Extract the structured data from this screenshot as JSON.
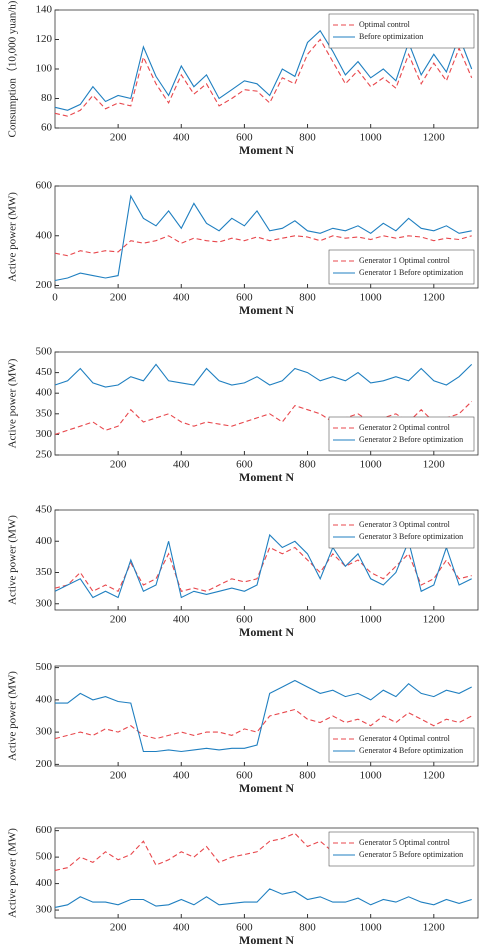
{
  "chart_data": [
    {
      "type": "line",
      "x_label": "Moment N",
      "y_label": "Consumption（10,000 yuan/h)",
      "legend": "top-right",
      "x": [
        0,
        40,
        80,
        120,
        160,
        200,
        240,
        280,
        320,
        360,
        400,
        440,
        480,
        520,
        560,
        600,
        640,
        680,
        720,
        760,
        800,
        840,
        880,
        920,
        960,
        1000,
        1040,
        1080,
        1120,
        1160,
        1200,
        1240,
        1280,
        1320
      ],
      "xlim": [
        0,
        1340
      ],
      "xticks": [
        200,
        400,
        600,
        800,
        1000,
        1200
      ],
      "ylim": [
        60,
        140
      ],
      "yticks": [
        60,
        80,
        100,
        120,
        140
      ],
      "series": [
        {
          "name": "Optimal control",
          "color": "#e8474c",
          "style": "dashed",
          "values": [
            70,
            68,
            72,
            82,
            73,
            77,
            75,
            108,
            90,
            77,
            96,
            83,
            90,
            75,
            80,
            86,
            85,
            77,
            94,
            90,
            110,
            120,
            105,
            90,
            99,
            88,
            94,
            87,
            110,
            90,
            104,
            92,
            114,
            94
          ]
        },
        {
          "name": "Before optimization",
          "color": "#1f7fc0",
          "style": "solid",
          "values": [
            74,
            72,
            76,
            88,
            78,
            82,
            80,
            115,
            95,
            82,
            102,
            88,
            96,
            80,
            86,
            92,
            90,
            82,
            100,
            95,
            118,
            126,
            112,
            96,
            105,
            94,
            100,
            92,
            118,
            96,
            110,
            98,
            122,
            100
          ]
        }
      ]
    },
    {
      "type": "line",
      "x_label": "Moment N",
      "y_label": "Active power (MW)",
      "legend": "bottom-right",
      "x": [
        0,
        40,
        80,
        120,
        160,
        200,
        240,
        280,
        320,
        360,
        400,
        440,
        480,
        520,
        560,
        600,
        640,
        680,
        720,
        760,
        800,
        840,
        880,
        920,
        960,
        1000,
        1040,
        1080,
        1120,
        1160,
        1200,
        1240,
        1280,
        1320
      ],
      "xlim": [
        0,
        1340
      ],
      "xticks": [
        0,
        200,
        400,
        600,
        800,
        1000,
        1200
      ],
      "ylim": [
        190,
        600
      ],
      "yticks": [
        200,
        400,
        600
      ],
      "series": [
        {
          "name": "Generator 1  Optimal control",
          "color": "#e8474c",
          "style": "dashed",
          "values": [
            330,
            320,
            340,
            330,
            340,
            335,
            380,
            370,
            380,
            400,
            370,
            390,
            380,
            375,
            390,
            380,
            395,
            380,
            390,
            400,
            395,
            380,
            400,
            390,
            395,
            385,
            400,
            390,
            400,
            395,
            380,
            390,
            385,
            400
          ]
        },
        {
          "name": "Generator 1  Before optimization",
          "color": "#1f7fc0",
          "style": "solid",
          "values": [
            220,
            230,
            250,
            240,
            230,
            240,
            560,
            470,
            440,
            500,
            430,
            530,
            450,
            420,
            470,
            440,
            500,
            420,
            430,
            460,
            420,
            410,
            430,
            420,
            440,
            410,
            450,
            420,
            470,
            430,
            420,
            440,
            410,
            420
          ]
        }
      ]
    },
    {
      "type": "line",
      "x_label": "Moment N",
      "y_label": "Active power (MW)",
      "legend": "bottom-right",
      "x": [
        0,
        40,
        80,
        120,
        160,
        200,
        240,
        280,
        320,
        360,
        400,
        440,
        480,
        520,
        560,
        600,
        640,
        680,
        720,
        760,
        800,
        840,
        880,
        920,
        960,
        1000,
        1040,
        1080,
        1120,
        1160,
        1200,
        1240,
        1280,
        1320
      ],
      "xlim": [
        0,
        1340
      ],
      "xticks": [
        200,
        400,
        600,
        800,
        1000,
        1200
      ],
      "ylim": [
        250,
        500
      ],
      "yticks": [
        250,
        300,
        350,
        400,
        450,
        500
      ],
      "series": [
        {
          "name": "Generator 2     Optimal control",
          "color": "#e8474c",
          "style": "dashed",
          "values": [
            300,
            310,
            320,
            330,
            310,
            320,
            360,
            330,
            340,
            350,
            330,
            320,
            330,
            325,
            320,
            330,
            340,
            350,
            330,
            370,
            360,
            350,
            330,
            340,
            350,
            330,
            340,
            350,
            330,
            360,
            330,
            340,
            350,
            380
          ]
        },
        {
          "name": "Generator 2   Before optimization",
          "color": "#1f7fc0",
          "style": "solid",
          "values": [
            420,
            430,
            460,
            425,
            415,
            420,
            440,
            430,
            470,
            430,
            425,
            420,
            460,
            430,
            420,
            425,
            440,
            420,
            430,
            460,
            450,
            430,
            440,
            430,
            450,
            425,
            430,
            440,
            430,
            460,
            430,
            420,
            440,
            470
          ]
        }
      ]
    },
    {
      "type": "line",
      "x_label": "Moment N",
      "y_label": "Active  power (MW)",
      "legend": "top-right",
      "x": [
        0,
        40,
        80,
        120,
        160,
        200,
        240,
        280,
        320,
        360,
        400,
        440,
        480,
        520,
        560,
        600,
        640,
        680,
        720,
        760,
        800,
        840,
        880,
        920,
        960,
        1000,
        1040,
        1080,
        1120,
        1160,
        1200,
        1240,
        1280,
        1320
      ],
      "xlim": [
        0,
        1340
      ],
      "xticks": [
        200,
        400,
        600,
        800,
        1000,
        1200
      ],
      "ylim": [
        290,
        450
      ],
      "yticks": [
        300,
        350,
        400,
        450
      ],
      "series": [
        {
          "name": "Generator 3   Optimal control",
          "color": "#e8474c",
          "style": "dashed",
          "values": [
            325,
            330,
            350,
            320,
            330,
            320,
            365,
            330,
            340,
            380,
            320,
            325,
            320,
            330,
            340,
            335,
            340,
            390,
            380,
            390,
            370,
            350,
            380,
            360,
            370,
            350,
            340,
            360,
            380,
            330,
            340,
            370,
            340,
            345
          ]
        },
        {
          "name": "Generator 3  Before optimization",
          "color": "#1f7fc0",
          "style": "solid",
          "values": [
            320,
            330,
            340,
            310,
            320,
            310,
            370,
            320,
            330,
            400,
            310,
            320,
            315,
            320,
            325,
            320,
            330,
            410,
            390,
            400,
            380,
            340,
            390,
            360,
            380,
            340,
            330,
            350,
            400,
            320,
            330,
            390,
            330,
            340
          ]
        }
      ]
    },
    {
      "type": "line",
      "x_label": "Moment N",
      "y_label": "Active power (MW)",
      "legend": "bottom-right",
      "x": [
        0,
        40,
        80,
        120,
        160,
        200,
        240,
        280,
        320,
        360,
        400,
        440,
        480,
        520,
        560,
        600,
        640,
        680,
        720,
        760,
        800,
        840,
        880,
        920,
        960,
        1000,
        1040,
        1080,
        1120,
        1160,
        1200,
        1240,
        1280,
        1320
      ],
      "xlim": [
        0,
        1340
      ],
      "xticks": [
        200,
        400,
        600,
        800,
        1000,
        1200
      ],
      "ylim": [
        195,
        505
      ],
      "yticks": [
        200,
        300,
        400,
        500
      ],
      "series": [
        {
          "name": "Generator 4        Optimal control",
          "color": "#e8474c",
          "style": "dashed",
          "values": [
            280,
            290,
            300,
            290,
            310,
            300,
            320,
            290,
            280,
            290,
            300,
            290,
            300,
            300,
            290,
            310,
            300,
            350,
            360,
            370,
            340,
            330,
            350,
            330,
            340,
            320,
            350,
            330,
            360,
            340,
            320,
            340,
            330,
            350
          ]
        },
        {
          "name": "Generator 4      Before optimization",
          "color": "#1f7fc0",
          "style": "solid",
          "values": [
            390,
            390,
            420,
            400,
            410,
            395,
            390,
            240,
            240,
            245,
            240,
            245,
            250,
            245,
            250,
            250,
            260,
            420,
            440,
            460,
            440,
            420,
            430,
            410,
            420,
            400,
            430,
            410,
            450,
            420,
            410,
            430,
            420,
            440
          ]
        }
      ]
    },
    {
      "type": "line",
      "x_label": "Moment N",
      "y_label": "Active power (MW)",
      "legend": "top-right",
      "x": [
        0,
        40,
        80,
        120,
        160,
        200,
        240,
        280,
        320,
        360,
        400,
        440,
        480,
        520,
        560,
        600,
        640,
        680,
        720,
        760,
        800,
        840,
        880,
        920,
        960,
        1000,
        1040,
        1080,
        1120,
        1160,
        1200,
        1240,
        1280,
        1320
      ],
      "xlim": [
        0,
        1340
      ],
      "xticks": [
        200,
        400,
        600,
        800,
        1000,
        1200
      ],
      "ylim": [
        270,
        610
      ],
      "yticks": [
        300,
        400,
        500,
        600
      ],
      "series": [
        {
          "name": "Generator 5 Optimal control",
          "color": "#e8474c",
          "style": "dashed",
          "values": [
            450,
            460,
            500,
            480,
            520,
            490,
            510,
            560,
            470,
            490,
            520,
            500,
            540,
            480,
            500,
            510,
            520,
            560,
            570,
            590,
            540,
            560,
            520,
            530,
            550,
            510,
            540,
            520,
            560,
            530,
            510,
            540,
            520,
            590
          ]
        },
        {
          "name": "Generator 5 Before optimization",
          "color": "#1f7fc0",
          "style": "solid",
          "values": [
            310,
            320,
            350,
            330,
            330,
            320,
            340,
            340,
            315,
            320,
            340,
            320,
            350,
            320,
            325,
            330,
            330,
            380,
            360,
            370,
            340,
            350,
            330,
            330,
            345,
            320,
            340,
            330,
            350,
            330,
            320,
            340,
            325,
            340
          ]
        }
      ]
    }
  ]
}
